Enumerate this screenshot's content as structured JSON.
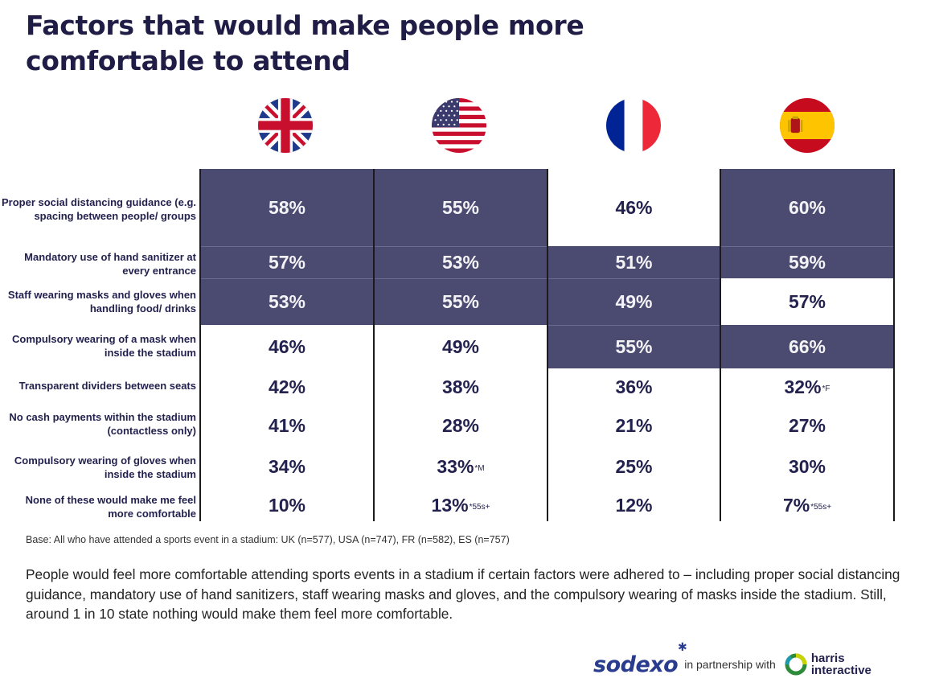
{
  "title": {
    "line1": "Factors that would make people more",
    "line2": "comfortable to attend"
  },
  "countries": [
    {
      "code": "UK",
      "flag_icon": "uk-flag-icon"
    },
    {
      "code": "USA",
      "flag_icon": "us-flag-icon"
    },
    {
      "code": "FR",
      "flag_icon": "france-flag-icon"
    },
    {
      "code": "ES",
      "flag_icon": "spain-flag-icon"
    }
  ],
  "colors": {
    "highlight": "#4b4a70",
    "text_dark": "#23224f",
    "text_light": "#f3f3f6"
  },
  "chart_data": {
    "type": "table",
    "title": "Factors that would make people more comfortable to attend",
    "columns": [
      "UK",
      "USA",
      "FR",
      "ES"
    ],
    "rows": [
      {
        "label": "Proper social distancing guidance (e.g. spacing between people/ groups",
        "values": [
          "58%",
          "55%",
          "46%",
          "60%"
        ],
        "highlight": [
          true,
          true,
          false,
          true
        ],
        "notes": [
          "",
          "",
          "",
          ""
        ]
      },
      {
        "label": "Mandatory use of hand sanitizer at every entrance",
        "values": [
          "57%",
          "53%",
          "51%",
          "59%"
        ],
        "highlight": [
          true,
          true,
          true,
          true
        ],
        "notes": [
          "",
          "",
          "",
          ""
        ]
      },
      {
        "label": "Staff wearing masks and gloves when handling food/ drinks",
        "values": [
          "53%",
          "55%",
          "49%",
          "57%"
        ],
        "highlight": [
          true,
          true,
          true,
          false
        ],
        "notes": [
          "",
          "",
          "",
          ""
        ]
      },
      {
        "label": "Compulsory wearing of a mask when inside the stadium",
        "values": [
          "46%",
          "49%",
          "55%",
          "66%"
        ],
        "highlight": [
          false,
          false,
          true,
          true
        ],
        "notes": [
          "",
          "",
          "",
          ""
        ]
      },
      {
        "label": "Transparent dividers between seats",
        "values": [
          "42%",
          "38%",
          "36%",
          "32%"
        ],
        "highlight": [
          false,
          false,
          false,
          false
        ],
        "notes": [
          "",
          "",
          "",
          "*F"
        ]
      },
      {
        "label": "No cash payments within the stadium (contactless only)",
        "values": [
          "41%",
          "28%",
          "21%",
          "27%"
        ],
        "highlight": [
          false,
          false,
          false,
          false
        ],
        "notes": [
          "",
          "",
          "",
          ""
        ]
      },
      {
        "label": "Compulsory wearing of gloves when inside the stadium",
        "values": [
          "34%",
          "33%",
          "25%",
          "30%"
        ],
        "highlight": [
          false,
          false,
          false,
          false
        ],
        "notes": [
          "",
          "*M",
          "",
          ""
        ]
      },
      {
        "label": "None of these would make me feel more comfortable",
        "values": [
          "10%",
          "13%",
          "12%",
          "7%"
        ],
        "highlight": [
          false,
          false,
          false,
          false
        ],
        "notes": [
          "",
          "*55s+",
          "",
          "*55s+"
        ]
      }
    ]
  },
  "base_note": "Base: All who have attended a sports event in a stadium: UK (n=577), USA (n=747), FR (n=582), ES (n=757)",
  "summary": "People would feel more comfortable attending sports events in a stadium if certain factors were adhered to – including proper social distancing guidance, mandatory use of hand sanitizers, staff wearing masks and gloves, and the compulsory wearing of masks inside the stadium. Still, around 1 in 10 state nothing would make them feel more comfortable.",
  "footer": {
    "brand": "sodexo",
    "partner_text": "in partnership with",
    "partner_line1": "harris",
    "partner_line2": "interactive"
  }
}
